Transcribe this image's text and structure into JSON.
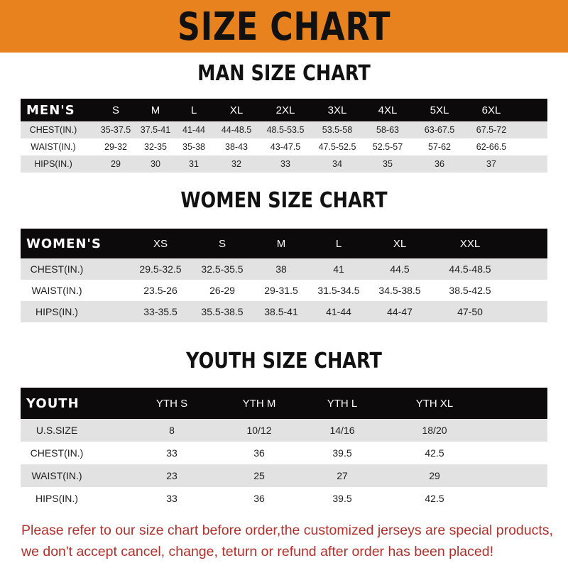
{
  "banner_title": "SIZE CHART",
  "colors": {
    "banner": "#e8821e",
    "header_row": "#0c0a0a",
    "stripe": "#e2e2e2",
    "notice": "#b3302a"
  },
  "men": {
    "title": "MAN SIZE CHART",
    "header": [
      "MEN'S",
      "S",
      "M",
      "L",
      "XL",
      "2XL",
      "3XL",
      "4XL",
      "5XL",
      "6XL"
    ],
    "rows": [
      [
        "CHEST(IN.)",
        "35-37.5",
        "37.5-41",
        "41-44",
        "44-48.5",
        "48.5-53.5",
        "53.5-58",
        "58-63",
        "63-67.5",
        "67.5-72"
      ],
      [
        "WAIST(IN.)",
        "29-32",
        "32-35",
        "35-38",
        "38-43",
        "43-47.5",
        "47.5-52.5",
        "52.5-57",
        "57-62",
        "62-66.5"
      ],
      [
        "HIPS(IN.)",
        "29",
        "30",
        "31",
        "32",
        "33",
        "34",
        "35",
        "36",
        "37"
      ]
    ]
  },
  "women": {
    "title": "WOMEN SIZE CHART",
    "header": [
      "WOMEN'S",
      "XS",
      "S",
      "M",
      "L",
      "XL",
      "XXL"
    ],
    "rows": [
      [
        "CHEST(IN.)",
        "29.5-32.5",
        "32.5-35.5",
        "38",
        "41",
        "44.5",
        "44.5-48.5"
      ],
      [
        "WAIST(IN.)",
        "23.5-26",
        "26-29",
        "29-31.5",
        "31.5-34.5",
        "34.5-38.5",
        "38.5-42.5"
      ],
      [
        "HIPS(IN.)",
        "33-35.5",
        "35.5-38.5",
        "38.5-41",
        "41-44",
        "44-47",
        "47-50"
      ]
    ]
  },
  "youth": {
    "title": "YOUTH SIZE CHART",
    "header": [
      "YOUTH",
      "YTH S",
      "YTH M",
      "YTH L",
      "YTH XL"
    ],
    "rows": [
      [
        "U.S.SIZE",
        "8",
        "10/12",
        "14/16",
        "18/20"
      ],
      [
        "CHEST(IN.)",
        "33",
        "36",
        "39.5",
        "42.5"
      ],
      [
        "WAIST(IN.)",
        "23",
        "25",
        "27",
        "29"
      ],
      [
        "HIPS(IN.)",
        "33",
        "36",
        "39.5",
        "42.5"
      ]
    ]
  },
  "notice": [
    "Please refer to our size chart before order,the customized jerseys are special products,",
    "we don't accept cancel, change, teturn or refund after order has been placed!"
  ]
}
